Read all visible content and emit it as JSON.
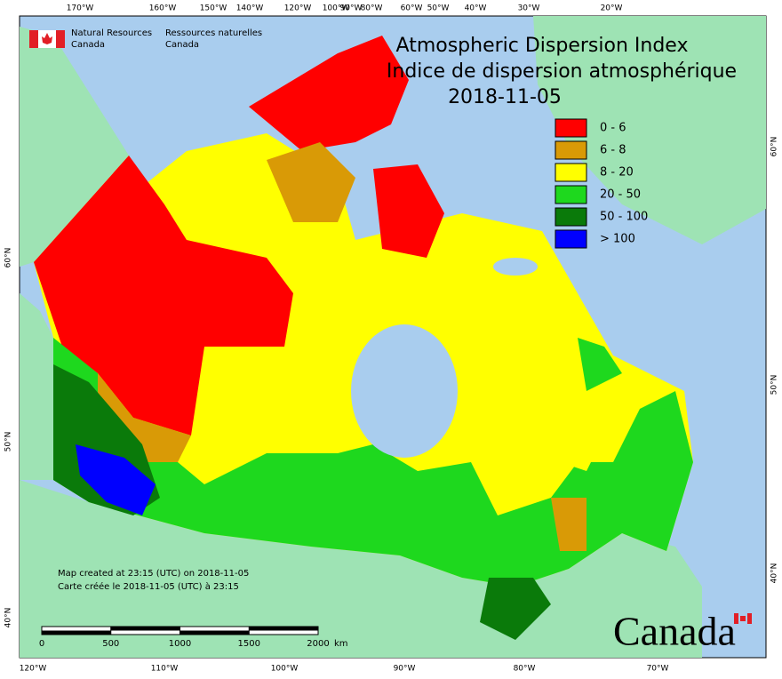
{
  "header": {
    "agency_en": [
      "Natural Resources",
      "Canada"
    ],
    "agency_fr": [
      "Ressources naturelles",
      "Canada"
    ]
  },
  "title": [
    "Atmospheric Dispersion Index",
    "Indice de dispersion atmosphérique"
  ],
  "date": "2018-11-05",
  "legend": [
    {
      "label": "0 - 6",
      "color": "#ff0000"
    },
    {
      "label": "6 - 8",
      "color": "#d99a06"
    },
    {
      "label": "8 - 20",
      "color": "#ffff00"
    },
    {
      "label": "20 - 50",
      "color": "#1ed81e"
    },
    {
      "label": "50 - 100",
      "color": "#0a7a0a"
    },
    {
      "label": "> 100",
      "color": "#0000ff"
    }
  ],
  "graticule": {
    "top": [
      "170°W",
      "160°W",
      "150°W",
      "140°W",
      "120°W",
      "100°W",
      "90°W",
      "80°W",
      "60°W",
      "50°W",
      "40°W",
      "30°W",
      "20°W"
    ],
    "bottom": [
      "120°W",
      "110°W",
      "100°W",
      "90°W",
      "80°W",
      "70°W"
    ],
    "left": [
      "60°N",
      "50°N",
      "40°N"
    ],
    "right": [
      "60°N",
      "50°N",
      "40°N"
    ]
  },
  "footer": [
    "Map created at 23:15 (UTC) on 2018-11-05",
    "Carte créée le 2018-11-05 (UTC) à 23:15"
  ],
  "scale": {
    "ticks": [
      0,
      500,
      1000,
      1500,
      2000
    ],
    "unit": "km"
  },
  "wordmark": "Canada"
}
